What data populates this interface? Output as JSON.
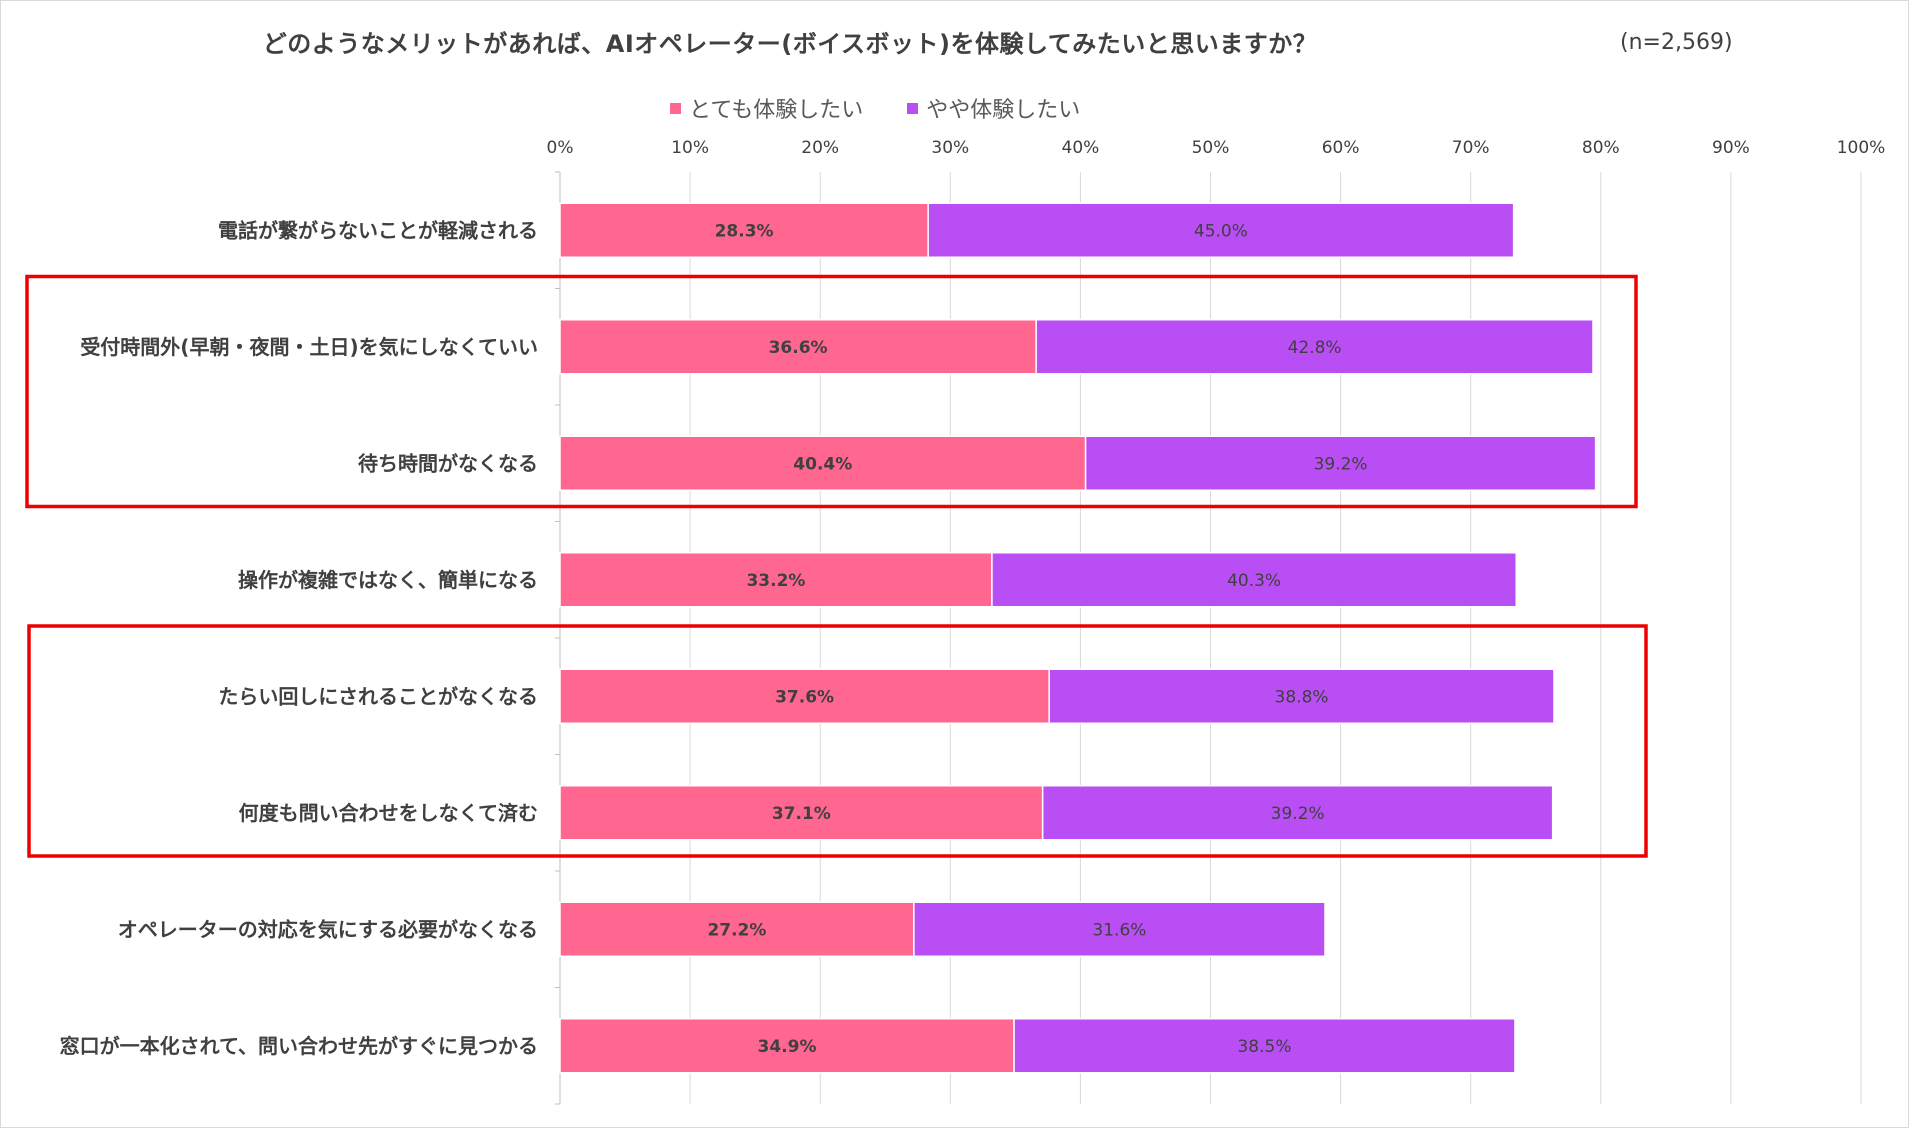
{
  "chart_data": {
    "type": "bar",
    "orientation": "horizontal",
    "stacked": true,
    "title": "どのようなメリットがあれば、AIオペレーター(ボイスボット)を体験してみたいと思いますか？",
    "note": "(n=2,569)",
    "categories": [
      "電話が繋がらないことが軽減される",
      "受付時間外(早朝・夜間・土日)を気にしなくていい",
      "待ち時間がなくなる",
      "操作が複雑ではなく、簡単になる",
      "たらい回しにされることがなくなる",
      "何度も問い合わせをしなくて済む",
      "オペレーターの対応を気にする必要がなくなる",
      "窓口が一本化されて、問い合わせ先がすぐに見つかる"
    ],
    "series": [
      {
        "name": "とても体験したい",
        "color": "#ff6690",
        "values": [
          28.3,
          36.6,
          40.4,
          33.2,
          37.6,
          37.1,
          27.2,
          34.9
        ],
        "labels": [
          "28.3%",
          "36.6%",
          "40.4%",
          "33.2%",
          "37.6%",
          "37.1%",
          "27.2%",
          "34.9%"
        ]
      },
      {
        "name": "やや体験したい",
        "color": "#b94ef5",
        "values": [
          45.0,
          42.8,
          39.2,
          40.3,
          38.8,
          39.2,
          31.6,
          38.5
        ],
        "labels": [
          "45.0%",
          "42.8%",
          "39.2%",
          "40.3%",
          "38.8%",
          "39.2%",
          "31.6%",
          "38.5%"
        ]
      }
    ],
    "x_ticks": [
      "0%",
      "10%",
      "20%",
      "30%",
      "40%",
      "50%",
      "60%",
      "70%",
      "80%",
      "90%",
      "100%"
    ],
    "xlim": [
      0,
      100
    ],
    "grid": true,
    "legend_position": "top",
    "highlight_groups": [
      [
        1,
        2
      ],
      [
        4,
        5
      ]
    ],
    "highlight_color": "#ee0000"
  }
}
